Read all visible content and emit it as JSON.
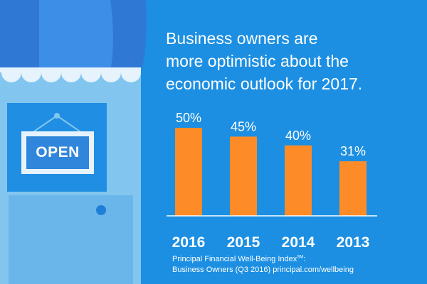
{
  "headline": {
    "line1": "Business owners are",
    "line2": "more optimistic about the",
    "line3": "economic outlook for 2017."
  },
  "door_sign": {
    "label": "OPEN"
  },
  "source": {
    "line1_prefix": "Principal Financial Well-Being Index",
    "line1_mark": "SM",
    "line1_suffix": ":",
    "line2": "Business Owners (Q3 2016) principal.com/wellbeing"
  },
  "colors": {
    "background": "#1c8fe2",
    "bar": "#fd8c28",
    "awning_dark": "#2f79d4",
    "awning_mid": "#3d8ee6",
    "door": "#82c6ef",
    "sign_panel": "#1f8ee3"
  },
  "chart_data": {
    "type": "bar",
    "categories": [
      "2016",
      "2015",
      "2014",
      "2013"
    ],
    "values": [
      50,
      45,
      40,
      31
    ],
    "labels": [
      "50%",
      "45%",
      "40%",
      "31%"
    ],
    "title": "Business owners are more optimistic about the economic outlook for 2017.",
    "xlabel": "",
    "ylabel": "",
    "ylim": [
      0,
      50
    ],
    "grid": false,
    "legend": "none"
  }
}
